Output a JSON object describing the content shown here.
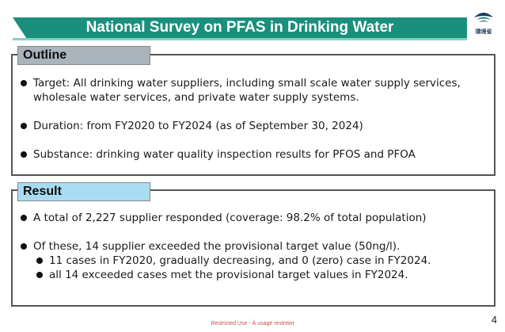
{
  "slide": {
    "title": "National Survey on PFAS in Drinking Water",
    "logo_text": "環境省",
    "footer": "Restricted Use - À usage restreint",
    "page_number": "4"
  },
  "outline": {
    "heading": "Outline",
    "bullets": [
      "Target: All drinking water suppliers, including small scale water supply services, wholesale water services, and private water supply systems.",
      "Duration: from FY2020 to FY2024 (as of September 30, 2024)",
      "Substance: drinking water quality inspection results for PFOS and PFOA"
    ]
  },
  "result": {
    "heading": "Result",
    "bullets": [
      "A total of 2,227 supplier responded (coverage: 98.2% of total population)",
      "Of these, 14 supplier exceeded the provisional target value (50ng/l)."
    ],
    "sub_bullets": [
      "11 cases in FY2020, gradually decreasing, and 0 (zero) case in FY2024.",
      "all 14 exceeded cases met the provisional target values in FY2024."
    ]
  },
  "colors": {
    "title_banner": "#1a8f7c",
    "outline_tab": "#a9b4bd",
    "result_tab": "#a9dcf2",
    "footer_text": "#c0504d"
  }
}
